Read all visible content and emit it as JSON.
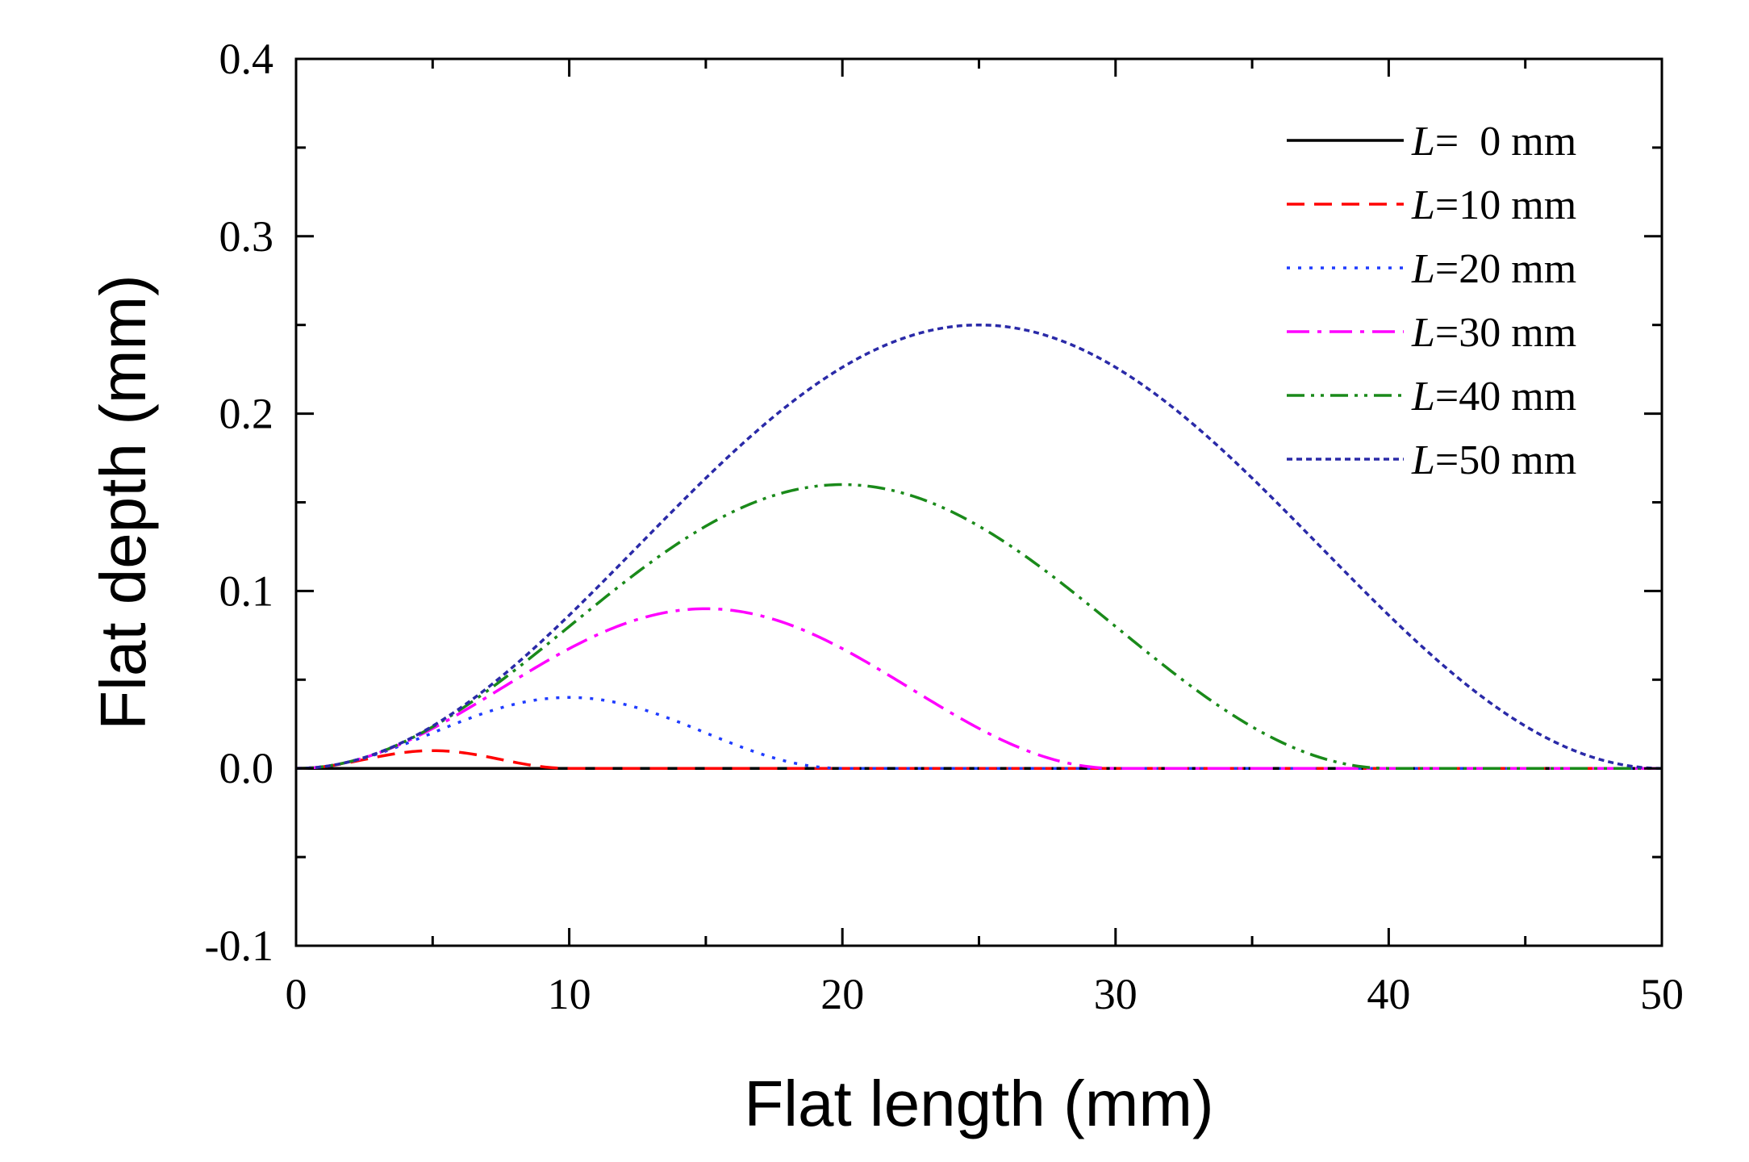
{
  "chart_data": {
    "type": "line",
    "xlabel": "Flat length (mm)",
    "ylabel": "Flat depth (mm)",
    "xlim": [
      0,
      50
    ],
    "ylim": [
      -0.1,
      0.4
    ],
    "x_ticks": [
      0,
      10,
      20,
      30,
      40,
      50
    ],
    "x_tick_labels": [
      "0",
      "10",
      "20",
      "30",
      "40",
      "50"
    ],
    "y_ticks": [
      -0.1,
      0.0,
      0.1,
      0.2,
      0.3,
      0.4
    ],
    "y_tick_labels": [
      "-0.1",
      "0.0",
      "0.1",
      "0.2",
      "0.3",
      "0.4"
    ],
    "grid": false,
    "legend_position": "top-right",
    "series": [
      {
        "name": "L=  0 mm",
        "legend_prefix": "L",
        "legend_suffix": "=  0 mm",
        "length": 0,
        "peak": 0.0,
        "color": "#000000",
        "style": "solid"
      },
      {
        "name": "L=10 mm",
        "legend_prefix": "L",
        "legend_suffix": "=10 mm",
        "length": 10,
        "peak": 0.01,
        "color": "#ff0000",
        "style": "dash"
      },
      {
        "name": "L=20 mm",
        "legend_prefix": "L",
        "legend_suffix": "=20 mm",
        "length": 20,
        "peak": 0.04,
        "color": "#1f3cff",
        "style": "dot"
      },
      {
        "name": "L=30 mm",
        "legend_prefix": "L",
        "legend_suffix": "=30 mm",
        "length": 30,
        "peak": 0.09,
        "color": "#ff00ff",
        "style": "dashdot"
      },
      {
        "name": "L=40 mm",
        "legend_prefix": "L",
        "legend_suffix": "=40 mm",
        "length": 40,
        "peak": 0.16,
        "color": "#1a8a1a",
        "style": "dashdotdot"
      },
      {
        "name": "L=50 mm",
        "legend_prefix": "L",
        "legend_suffix": "=50 mm",
        "length": 50,
        "peak": 0.25,
        "color": "#2a2aa8",
        "style": "shortdash"
      }
    ]
  }
}
